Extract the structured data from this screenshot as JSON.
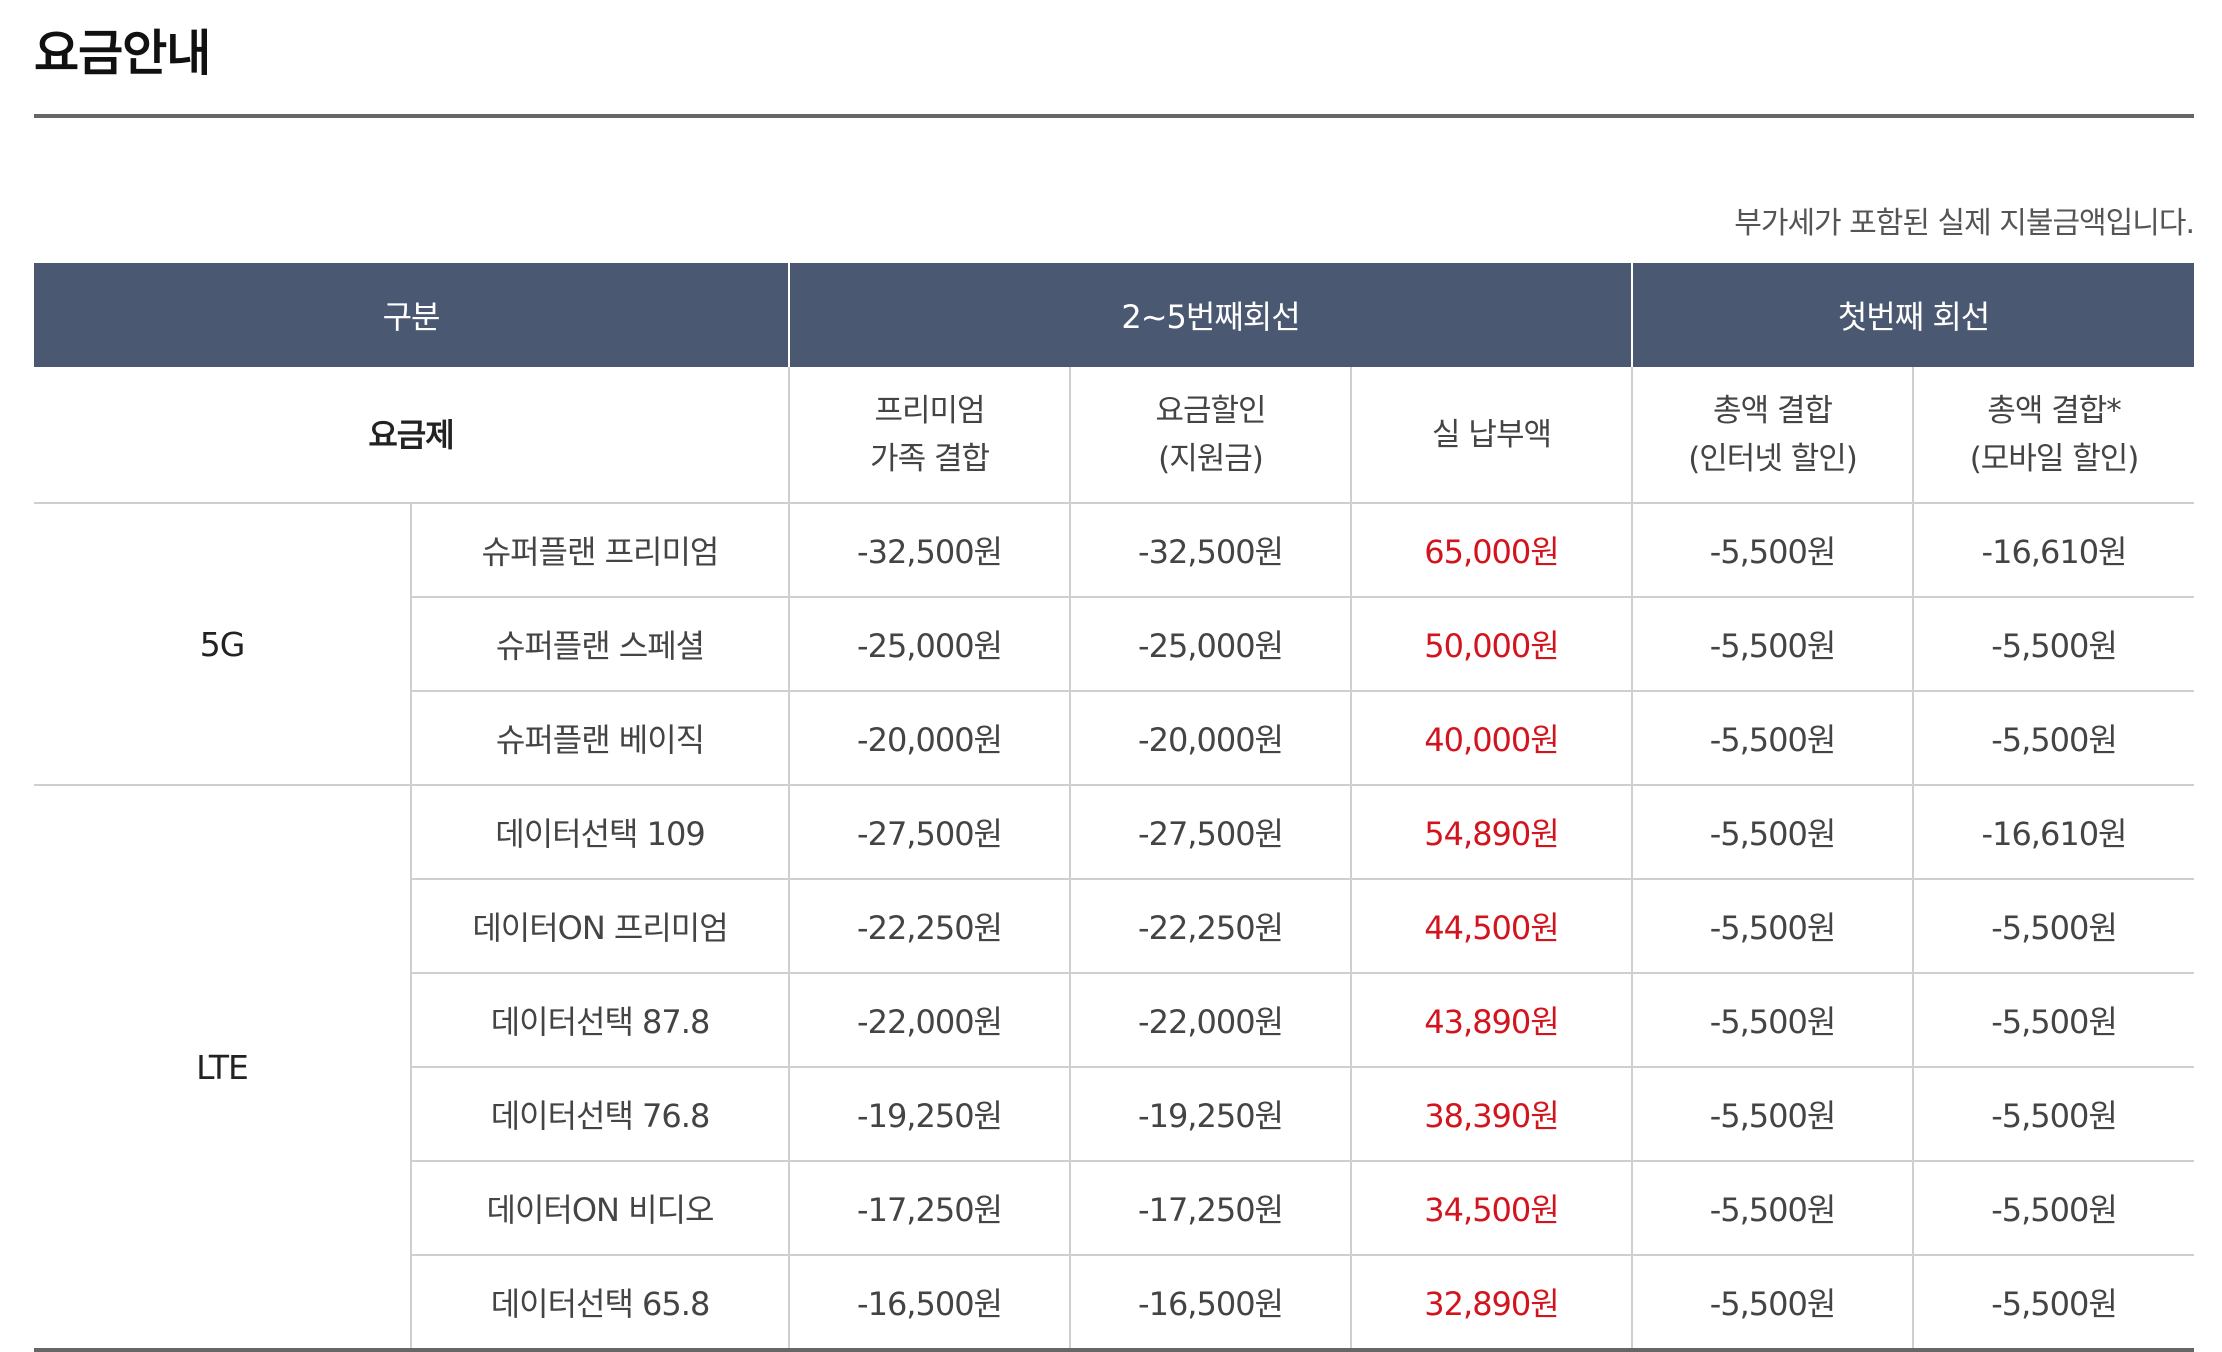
{
  "page": {
    "title": "요금안내",
    "vat_note": "부가세가 포함된 실제 지불금액입니다."
  },
  "table": {
    "header": {
      "category": "구분",
      "group_2_5": "2~5번째회선",
      "group_first": "첫번째 회선"
    },
    "subheader": {
      "plan": "요금제",
      "premium_family": [
        "프리미엄",
        "가족 결합"
      ],
      "fee_discount": [
        "요금할인",
        "(지원금)"
      ],
      "net_payment": "실 납부액",
      "total_internet": [
        "총액 결합",
        "(인터넷 할인)"
      ],
      "total_mobile": [
        "총액 결합*",
        "(모바일 할인)"
      ]
    },
    "groups": [
      {
        "category": "5G",
        "rows": [
          {
            "plan": "슈퍼플랜 프리미엄",
            "premium_family": "-32,500원",
            "fee_discount": "-32,500원",
            "net_payment": "65,000원",
            "total_internet": "-5,500원",
            "total_mobile": "-16,610원"
          },
          {
            "plan": "슈퍼플랜 스페셜",
            "premium_family": "-25,000원",
            "fee_discount": "-25,000원",
            "net_payment": "50,000원",
            "total_internet": "-5,500원",
            "total_mobile": "-5,500원"
          },
          {
            "plan": "슈퍼플랜 베이직",
            "premium_family": "-20,000원",
            "fee_discount": "-20,000원",
            "net_payment": "40,000원",
            "total_internet": "-5,500원",
            "total_mobile": "-5,500원"
          }
        ]
      },
      {
        "category": "LTE",
        "rows": [
          {
            "plan": "데이터선택 109",
            "premium_family": "-27,500원",
            "fee_discount": "-27,500원",
            "net_payment": "54,890원",
            "total_internet": "-5,500원",
            "total_mobile": "-16,610원"
          },
          {
            "plan": "데이터ON 프리미엄",
            "premium_family": "-22,250원",
            "fee_discount": "-22,250원",
            "net_payment": "44,500원",
            "total_internet": "-5,500원",
            "total_mobile": "-5,500원"
          },
          {
            "plan": "데이터선택 87.8",
            "premium_family": "-22,000원",
            "fee_discount": "-22,000원",
            "net_payment": "43,890원",
            "total_internet": "-5,500원",
            "total_mobile": "-5,500원"
          },
          {
            "plan": "데이터선택 76.8",
            "premium_family": "-19,250원",
            "fee_discount": "-19,250원",
            "net_payment": "38,390원",
            "total_internet": "-5,500원",
            "total_mobile": "-5,500원"
          },
          {
            "plan": "데이터ON 비디오",
            "premium_family": "-17,250원",
            "fee_discount": "-17,250원",
            "net_payment": "34,500원",
            "total_internet": "-5,500원",
            "total_mobile": "-5,500원"
          },
          {
            "plan": "데이터선택 65.8",
            "premium_family": "-16,500원",
            "fee_discount": "-16,500원",
            "net_payment": "32,890원",
            "total_internet": "-5,500원",
            "total_mobile": "-5,500원"
          }
        ]
      }
    ]
  }
}
